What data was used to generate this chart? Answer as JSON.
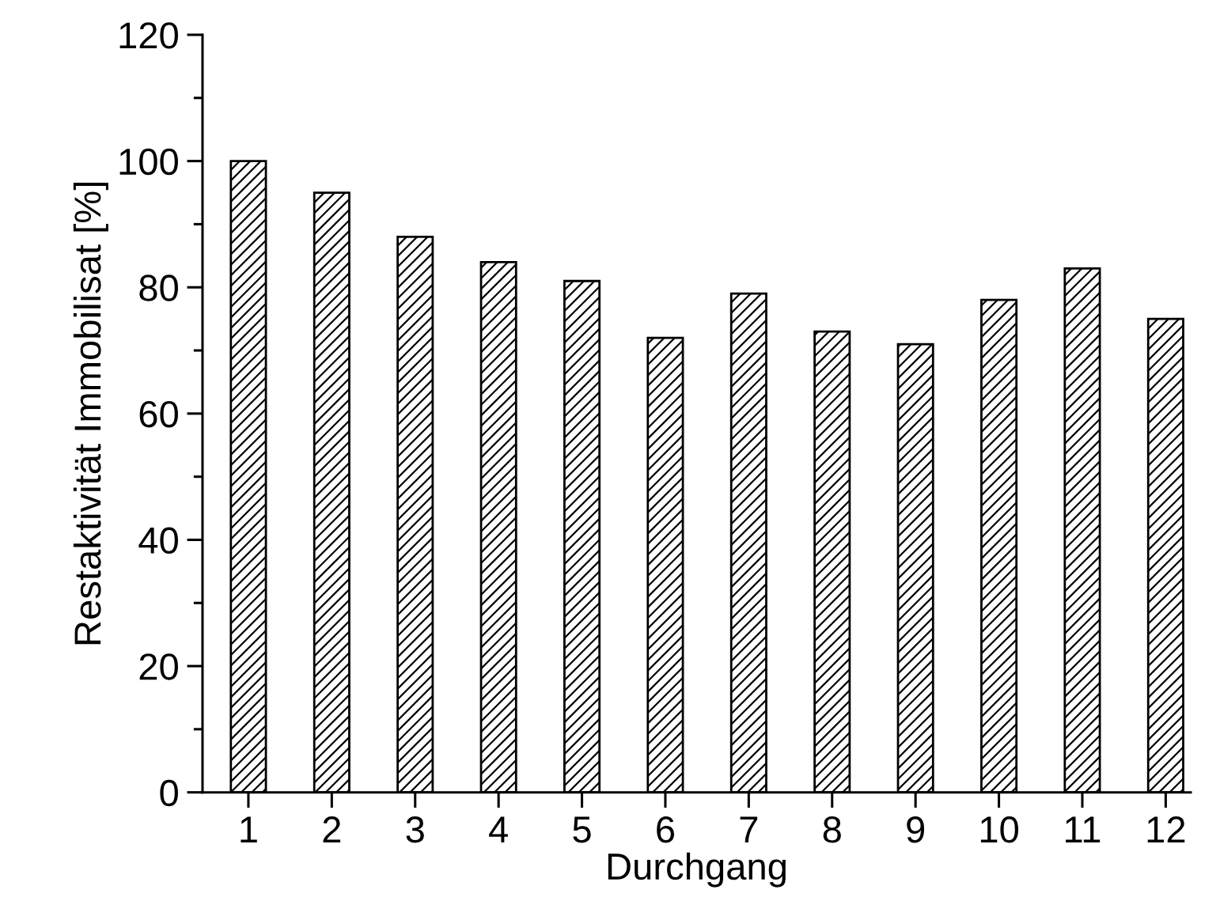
{
  "chart_data": {
    "type": "bar",
    "xlabel": "Durchgang",
    "ylabel": "Restaktivität Immobilisat [%]",
    "categories": [
      "1",
      "2",
      "3",
      "4",
      "5",
      "6",
      "7",
      "8",
      "9",
      "10",
      "11",
      "12"
    ],
    "values": [
      100,
      95,
      88,
      84,
      81,
      72,
      79,
      73,
      71,
      78,
      83,
      75
    ],
    "color": "#000000",
    "ylim": [
      0,
      120
    ],
    "yticks": [
      0,
      {
        "value": 10,
        "label": null
      },
      20,
      {
        "value": 30,
        "label": null
      },
      40,
      {
        "value": 50,
        "label": null
      },
      60,
      {
        "value": 70,
        "label": null
      },
      80,
      {
        "value": 90,
        "label": null
      },
      100,
      {
        "value": 110,
        "label": null
      },
      120
    ],
    "grid": false,
    "legend": false
  }
}
